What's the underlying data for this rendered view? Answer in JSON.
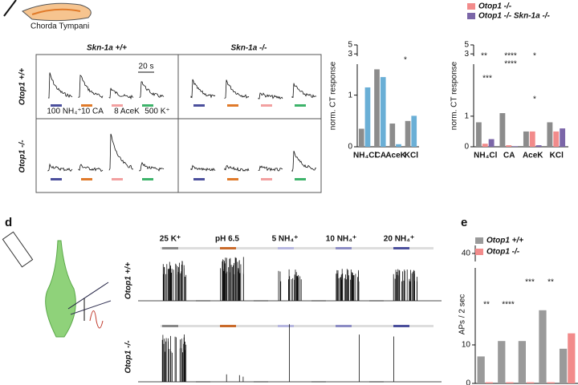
{
  "panels": {
    "top_left": {
      "nerve_label": "Chorda Tympani",
      "col_headers": [
        "Skn-1a +/+",
        "Skn-1a -/-"
      ],
      "row_headers": [
        "Otop1 +/+",
        "Otop1 -/-"
      ],
      "scale_label": "20 s",
      "stimuli": [
        "100 NH₄⁺",
        "10 CA",
        "8 AceK",
        "500 K⁺"
      ]
    },
    "d": {
      "label": "d",
      "stimuli": [
        "25 K⁺",
        "pH 6.5",
        "5 NH₄⁺",
        "10 NH₄⁺",
        "20 NH₄⁺"
      ],
      "row_headers": [
        "Otop1 +/+",
        "Otop1 -/-"
      ]
    },
    "e": {
      "label": "e"
    }
  },
  "chart_data": [
    {
      "type": "bar",
      "ylabel": "norm. CT response",
      "categories": [
        "NH₄Cl",
        "CA",
        "AceK",
        "KCl"
      ],
      "series": [
        {
          "color": "#8c8c8c",
          "values": [
            0.35,
            1.5,
            0.45,
            0.5
          ]
        },
        {
          "name": "Skn-1a -/-",
          "color": "#6aafd6",
          "values": [
            1.15,
            1.35,
            0.05,
            0.6
          ]
        }
      ],
      "ylim": [
        0,
        1.6
      ],
      "yticks": [
        0,
        1
      ],
      "ylim_upper": [
        2.5,
        5
      ],
      "yticks_upper": [
        3,
        5
      ],
      "annotations": [
        "*"
      ]
    },
    {
      "type": "bar",
      "ylabel": "norm. CT response",
      "categories": [
        "NH₄Cl",
        "CA",
        "AceK",
        "KCl"
      ],
      "series": [
        {
          "color": "#8c8c8c",
          "values": [
            0.8,
            1.1,
            0.5,
            0.8
          ]
        },
        {
          "name": "Otop1 -/-",
          "color": "#f28b8b",
          "values": [
            0.1,
            0.05,
            0.5,
            0.5
          ]
        },
        {
          "name": "Otop1 -/-  Skn-1a -/-",
          "color": "#7b66a8",
          "values": [
            0.25,
            0.02,
            0.05,
            0.6
          ]
        }
      ],
      "ylim": [
        0,
        2.7
      ],
      "yticks": [
        0,
        1
      ],
      "ylim_upper": [
        2.5,
        5
      ],
      "yticks_upper": [
        3,
        5
      ],
      "annotations": [
        "**",
        "***",
        "****",
        "****",
        "*",
        "*"
      ]
    },
    {
      "type": "bar",
      "ylabel": "APs / 2 sec",
      "categories": [
        null,
        null,
        null,
        null,
        null
      ],
      "series": [
        {
          "name": "Otop1 +/+",
          "color": "#9a9a9a",
          "values": [
            7,
            11,
            11,
            19,
            9
          ]
        },
        {
          "name": "Otop1 -/-",
          "color": "#f28b8b",
          "values": [
            0.3,
            0.3,
            0.3,
            0.3,
            13
          ]
        }
      ],
      "ylim": [
        0,
        30
      ],
      "yticks": [
        0,
        10
      ],
      "ylim_upper": [
        35,
        45
      ],
      "yticks_upper": [
        40
      ],
      "annotations": [
        "**",
        "****",
        "***",
        "**"
      ]
    }
  ]
}
